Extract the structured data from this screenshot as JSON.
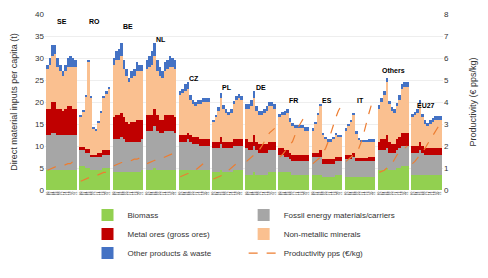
{
  "chart_data": {
    "type": "bar",
    "stacked": true,
    "ylabel": "Direct material inputs per capita (t)",
    "y2label": "Productivity (€ pps/kg)",
    "ylim": [
      0,
      40
    ],
    "yticks": [
      0,
      5,
      10,
      15,
      20,
      25,
      30,
      35,
      40
    ],
    "y2lim": [
      0,
      8
    ],
    "y2ticks": [
      0,
      1,
      2,
      3,
      4,
      5,
      6,
      7,
      8
    ],
    "grid": true,
    "legend": "bottom",
    "categories": [
      "00",
      "02",
      "04",
      "06",
      "08",
      "10",
      "12",
      "14",
      "16",
      "18",
      "20",
      "21",
      null,
      "00",
      "02",
      "04",
      "06",
      "08",
      "10",
      "12",
      "14",
      "16",
      "18",
      "20",
      "21",
      null,
      "00",
      "02",
      "04",
      "06",
      "08",
      "10",
      "12",
      "14",
      "16",
      "18",
      "20",
      "21",
      null,
      "00",
      "02",
      "04",
      "06",
      "08",
      "10",
      "12",
      "14",
      "16",
      "18",
      "20",
      "21",
      null,
      "00",
      "02",
      "04",
      "06",
      "08",
      "10",
      "12",
      "14",
      "16",
      "18",
      "20",
      "21",
      null,
      "00",
      "02",
      "04",
      "06",
      "08",
      "10",
      "12",
      "14",
      "16",
      "18",
      "20",
      "21",
      null,
      "00",
      "02",
      "04",
      "06",
      "08",
      "10",
      "12",
      "14",
      "16",
      "18",
      "20",
      "21",
      null,
      "00",
      "02",
      "04",
      "06",
      "08",
      "10",
      "12",
      "14",
      "16",
      "18",
      "20",
      "21",
      null,
      "00",
      "02",
      "04",
      "06",
      "08",
      "10",
      "12",
      "14",
      "16",
      "18",
      "20",
      "21",
      null,
      "00",
      "02",
      "04",
      "06",
      "08",
      "10",
      "12",
      "14",
      "16",
      "18",
      "20",
      "21",
      null,
      "00",
      "02",
      "04",
      "06",
      "08",
      "10",
      "12",
      "14",
      "16",
      "18",
      "20",
      "21",
      null,
      "00",
      "02",
      "04",
      "06",
      "08",
      "10",
      "12",
      "14",
      "16",
      "18",
      "20",
      "21"
    ],
    "annotations": [
      {
        "text": "SE",
        "x": 5.5,
        "y": 37
      },
      {
        "text": "RO",
        "x": 18.5,
        "y": 37
      },
      {
        "text": "BE",
        "x": 31.5,
        "y": 36
      },
      {
        "text": "NL",
        "x": 44.5,
        "y": 33
      },
      {
        "text": "CZ",
        "x": 57.5,
        "y": 24
      },
      {
        "text": "PL",
        "x": 70.5,
        "y": 22
      },
      {
        "text": "DE",
        "x": 83.5,
        "y": 22
      },
      {
        "text": "FR",
        "x": 96.5,
        "y": 19
      },
      {
        "text": "ES",
        "x": 109.5,
        "y": 19
      },
      {
        "text": "IT",
        "x": 122.5,
        "y": 19
      },
      {
        "text": "Others",
        "x": 135.5,
        "y": 26
      },
      {
        "text": "EU27",
        "x": 148.5,
        "y": 18
      }
    ],
    "series": [
      {
        "name": "Biomass",
        "type": "bar",
        "color": "#92d050",
        "values": [
          4.5,
          4.5,
          4.5,
          4.5,
          4.5,
          4.5,
          4.5,
          4.5,
          4.5,
          4.5,
          4.5,
          4.5,
          null,
          5.5,
          5.5,
          5.0,
          5.0,
          4.5,
          4.5,
          4.5,
          4.5,
          4.5,
          5.0,
          5.0,
          5.0,
          null,
          4.0,
          4.0,
          4.0,
          4.0,
          4.0,
          4.0,
          4.0,
          4.0,
          4.0,
          4.0,
          4.0,
          4.5,
          null,
          4.5,
          4.5,
          4.5,
          5.0,
          4.5,
          4.5,
          4.5,
          4.5,
          4.5,
          4.5,
          4.5,
          4.5,
          null,
          4.5,
          4.5,
          4.5,
          4.5,
          4.5,
          4.5,
          4.5,
          4.5,
          4.5,
          4.5,
          4.5,
          4.5,
          null,
          4.0,
          4.0,
          4.0,
          4.5,
          4.0,
          4.0,
          4.0,
          4.0,
          4.5,
          4.5,
          4.5,
          4.5,
          null,
          3.5,
          3.5,
          3.5,
          4.0,
          3.5,
          3.5,
          3.5,
          3.5,
          3.5,
          4.0,
          4.0,
          4.0,
          null,
          4.0,
          4.0,
          4.0,
          4.0,
          4.0,
          3.5,
          3.5,
          3.5,
          3.5,
          3.5,
          3.5,
          3.5,
          null,
          3.5,
          3.5,
          3.5,
          3.5,
          3.0,
          3.0,
          3.0,
          3.0,
          3.0,
          3.5,
          3.5,
          3.5,
          null,
          3.0,
          3.0,
          3.0,
          3.0,
          3.0,
          3.0,
          3.0,
          3.0,
          3.0,
          3.0,
          3.0,
          3.0,
          null,
          4.5,
          4.5,
          4.5,
          5.0,
          4.5,
          4.5,
          4.5,
          5.0,
          5.0,
          5.5,
          5.5,
          5.5,
          null,
          3.5,
          3.5,
          3.5,
          3.5,
          3.5,
          3.5,
          3.5,
          3.5,
          3.5,
          3.5,
          3.5,
          3.5
        ]
      },
      {
        "name": "Fossil energy materials/carriers",
        "type": "bar",
        "color": "#a6a6a6",
        "values": [
          8.0,
          8.0,
          8.5,
          8.5,
          8.0,
          8.0,
          8.0,
          8.0,
          8.0,
          8.0,
          8.0,
          8.0,
          null,
          3.5,
          3.5,
          3.5,
          3.5,
          3.0,
          3.0,
          3.0,
          3.0,
          3.0,
          3.0,
          3.0,
          3.0,
          null,
          7.5,
          7.5,
          7.5,
          8.0,
          7.5,
          7.0,
          7.0,
          7.0,
          7.0,
          7.0,
          7.0,
          7.0,
          null,
          9.0,
          9.0,
          9.0,
          9.5,
          9.0,
          8.5,
          8.5,
          9.0,
          9.0,
          9.0,
          9.0,
          8.5,
          null,
          6.5,
          6.5,
          6.5,
          7.0,
          6.5,
          6.0,
          6.0,
          6.0,
          5.5,
          5.5,
          5.5,
          5.5,
          null,
          5.5,
          5.5,
          5.5,
          6.0,
          5.5,
          5.5,
          5.5,
          5.5,
          5.5,
          5.5,
          5.5,
          5.5,
          null,
          6.0,
          5.5,
          5.5,
          6.0,
          5.5,
          5.0,
          5.0,
          5.0,
          5.0,
          5.0,
          5.0,
          5.0,
          null,
          4.0,
          4.0,
          3.5,
          3.5,
          3.0,
          3.0,
          3.0,
          3.0,
          3.0,
          3.0,
          3.0,
          3.0,
          null,
          4.0,
          4.0,
          4.0,
          4.0,
          3.0,
          3.0,
          3.0,
          3.0,
          3.0,
          3.0,
          3.0,
          3.0,
          null,
          4.0,
          4.0,
          4.0,
          4.5,
          3.5,
          3.5,
          3.5,
          3.5,
          3.5,
          3.5,
          3.5,
          3.5,
          null,
          4.5,
          4.5,
          4.5,
          4.5,
          4.0,
          4.0,
          4.0,
          4.0,
          4.5,
          4.5,
          4.5,
          4.5,
          null,
          5.0,
          5.0,
          5.0,
          5.5,
          5.0,
          4.5,
          4.5,
          4.5,
          4.5,
          4.5,
          4.5,
          4.5
        ]
      },
      {
        "name": "Metal ores (gross ores)",
        "type": "bar",
        "color": "#c00000",
        "values": [
          6.0,
          6.0,
          7.0,
          7.0,
          6.0,
          6.0,
          5.5,
          6.0,
          6.5,
          6.5,
          6.0,
          6.0,
          null,
          0.8,
          0.8,
          0.8,
          0.8,
          0.5,
          0.5,
          0.5,
          0.8,
          1.0,
          1.0,
          1.0,
          1.0,
          null,
          5.0,
          5.5,
          5.5,
          5.5,
          5.0,
          4.5,
          4.0,
          4.5,
          4.5,
          5.0,
          5.0,
          4.5,
          null,
          3.5,
          3.5,
          3.5,
          4.0,
          3.5,
          3.0,
          3.0,
          3.5,
          3.5,
          3.5,
          3.5,
          3.5,
          null,
          1.5,
          1.5,
          1.5,
          1.5,
          1.5,
          1.5,
          1.5,
          1.5,
          1.5,
          1.5,
          1.5,
          1.5,
          null,
          1.5,
          1.5,
          1.5,
          1.5,
          1.5,
          1.5,
          1.5,
          1.5,
          1.5,
          1.5,
          1.5,
          1.5,
          null,
          2.0,
          2.0,
          2.0,
          2.5,
          2.0,
          2.0,
          2.0,
          2.0,
          2.0,
          2.0,
          2.0,
          2.0,
          null,
          1.5,
          1.5,
          1.5,
          1.5,
          1.5,
          1.5,
          1.5,
          1.5,
          1.5,
          1.5,
          1.5,
          1.5,
          null,
          1.0,
          1.0,
          1.0,
          1.5,
          1.0,
          1.0,
          1.0,
          1.0,
          1.0,
          1.0,
          1.0,
          1.0,
          null,
          1.0,
          1.0,
          1.0,
          1.0,
          0.8,
          0.8,
          0.8,
          0.8,
          0.8,
          1.0,
          1.0,
          1.0,
          null,
          2.0,
          2.5,
          2.5,
          3.0,
          2.5,
          2.0,
          2.0,
          2.5,
          2.5,
          3.0,
          3.0,
          3.0,
          null,
          1.5,
          1.5,
          1.5,
          2.0,
          1.5,
          1.5,
          1.5,
          1.5,
          1.5,
          1.5,
          1.5,
          1.5
        ]
      },
      {
        "name": "Non-metallic minerals",
        "type": "bar",
        "color": "#fac090",
        "values": [
          9.0,
          10.0,
          10.5,
          11.0,
          9.5,
          8.5,
          8.0,
          8.5,
          9.0,
          9.0,
          9.5,
          9.5,
          null,
          7.0,
          8.0,
          12.0,
          20.0,
          13.0,
          6.0,
          5.5,
          7.0,
          9.0,
          12.0,
          13.0,
          14.0,
          null,
          12.0,
          12.5,
          12.5,
          13.0,
          11.0,
          10.5,
          9.5,
          10.0,
          10.5,
          11.0,
          11.0,
          11.0,
          null,
          10.5,
          11.0,
          11.5,
          12.0,
          10.0,
          10.0,
          9.5,
          10.0,
          10.5,
          11.0,
          11.0,
          11.0,
          null,
          9.0,
          9.5,
          10.0,
          10.0,
          8.0,
          7.5,
          7.0,
          7.5,
          8.0,
          8.5,
          8.5,
          8.5,
          null,
          4.5,
          5.5,
          7.0,
          9.0,
          7.5,
          6.5,
          6.0,
          6.5,
          8.0,
          9.0,
          9.5,
          9.0,
          null,
          7.0,
          7.5,
          8.0,
          8.5,
          7.0,
          6.5,
          6.5,
          7.0,
          7.5,
          8.0,
          8.0,
          7.5,
          null,
          7.0,
          7.5,
          8.0,
          8.5,
          7.0,
          6.5,
          6.0,
          6.0,
          6.0,
          6.0,
          5.5,
          5.5,
          null,
          5.0,
          6.5,
          8.5,
          10.0,
          5.5,
          4.5,
          4.0,
          4.0,
          4.5,
          5.0,
          4.5,
          4.5,
          null,
          5.5,
          6.5,
          7.5,
          8.5,
          5.5,
          4.0,
          3.5,
          3.5,
          3.5,
          3.5,
          3.5,
          3.5,
          null,
          7.5,
          8.5,
          10.0,
          12.0,
          8.5,
          7.5,
          7.0,
          7.5,
          8.5,
          10.0,
          10.5,
          10.5,
          null,
          6.5,
          7.0,
          7.5,
          8.5,
          6.5,
          5.5,
          5.0,
          5.5,
          6.0,
          6.5,
          6.5,
          6.5
        ]
      },
      {
        "name": "Other products & waste",
        "type": "bar",
        "color": "#4472c4",
        "values": [
          1.0,
          1.5,
          2.5,
          2.0,
          2.0,
          1.5,
          1.0,
          1.5,
          2.0,
          2.5,
          2.0,
          1.5,
          null,
          0.3,
          0.3,
          0.3,
          0.3,
          0.3,
          0.3,
          0.3,
          0.3,
          0.3,
          0.4,
          0.4,
          0.4,
          null,
          1.5,
          2.0,
          2.5,
          3.0,
          2.0,
          1.5,
          1.0,
          1.5,
          1.5,
          2.0,
          1.5,
          1.5,
          null,
          2.0,
          2.5,
          3.0,
          3.0,
          2.5,
          2.0,
          1.5,
          2.0,
          2.0,
          2.5,
          2.0,
          2.0,
          null,
          1.0,
          1.0,
          1.5,
          1.5,
          1.0,
          1.0,
          1.0,
          1.0,
          1.0,
          1.0,
          1.0,
          1.0,
          null,
          0.5,
          0.5,
          0.8,
          1.0,
          0.8,
          0.8,
          0.8,
          0.8,
          0.8,
          0.8,
          0.8,
          0.8,
          null,
          1.0,
          1.0,
          1.5,
          1.5,
          1.0,
          1.0,
          1.0,
          1.0,
          1.0,
          1.0,
          1.0,
          1.0,
          null,
          0.8,
          0.8,
          1.0,
          1.0,
          0.8,
          0.8,
          0.8,
          0.8,
          0.8,
          0.8,
          0.8,
          0.8,
          null,
          0.5,
          0.5,
          0.5,
          0.5,
          0.5,
          0.5,
          0.5,
          0.5,
          0.5,
          0.5,
          0.5,
          0.5,
          null,
          0.5,
          0.5,
          0.5,
          0.5,
          0.5,
          0.5,
          0.5,
          0.5,
          0.5,
          0.5,
          0.5,
          0.5,
          null,
          0.8,
          1.0,
          1.0,
          1.0,
          0.8,
          0.8,
          0.8,
          0.8,
          1.0,
          1.0,
          1.0,
          1.0,
          null,
          0.8,
          0.8,
          0.8,
          1.0,
          0.8,
          0.8,
          0.8,
          0.8,
          0.8,
          0.8,
          0.8,
          0.8
        ]
      },
      {
        "name": "Productivity pps (€/kg)",
        "type": "line",
        "axis": "y2",
        "line_style": "dashed",
        "color": "#ed7d31",
        "values": [
          0.9,
          0.95,
          1.0,
          1.05,
          1.05,
          1.1,
          1.1,
          1.15,
          1.2,
          1.2,
          1.3,
          1.3,
          null,
          0.4,
          0.45,
          0.5,
          0.55,
          0.55,
          0.6,
          0.65,
          0.7,
          0.75,
          0.8,
          0.8,
          0.8,
          null,
          1.1,
          1.15,
          1.2,
          1.25,
          1.25,
          1.3,
          1.3,
          1.35,
          1.4,
          1.4,
          1.45,
          1.45,
          null,
          1.2,
          1.25,
          1.3,
          1.35,
          1.35,
          1.4,
          1.45,
          1.5,
          1.55,
          1.6,
          1.65,
          1.7,
          null,
          0.6,
          0.65,
          0.7,
          0.75,
          0.75,
          0.85,
          0.9,
          1.0,
          1.1,
          1.2,
          1.3,
          1.4,
          null,
          0.5,
          0.55,
          0.6,
          0.65,
          0.7,
          0.8,
          0.9,
          1.0,
          1.1,
          1.2,
          1.3,
          1.4,
          null,
          1.3,
          1.4,
          1.5,
          1.6,
          1.65,
          1.8,
          2.0,
          2.2,
          2.4,
          2.6,
          2.7,
          2.8,
          null,
          1.5,
          1.6,
          1.75,
          1.9,
          2.0,
          2.2,
          2.5,
          2.8,
          3.0,
          3.2,
          3.3,
          3.5,
          null,
          1.2,
          1.3,
          1.4,
          1.5,
          1.7,
          1.9,
          2.2,
          2.6,
          3.0,
          3.3,
          3.6,
          3.8,
          null,
          1.3,
          1.4,
          1.5,
          1.6,
          1.7,
          1.9,
          2.2,
          2.6,
          3.1,
          3.5,
          3.9,
          4.2,
          null,
          0.8,
          0.85,
          0.9,
          1.0,
          1.1,
          1.2,
          1.4,
          1.6,
          1.7,
          1.8,
          1.9,
          2.0,
          null,
          1.2,
          1.3,
          1.45,
          1.6,
          1.7,
          1.9,
          2.1,
          2.3,
          2.5,
          2.7,
          2.85,
          3.0
        ]
      }
    ]
  }
}
